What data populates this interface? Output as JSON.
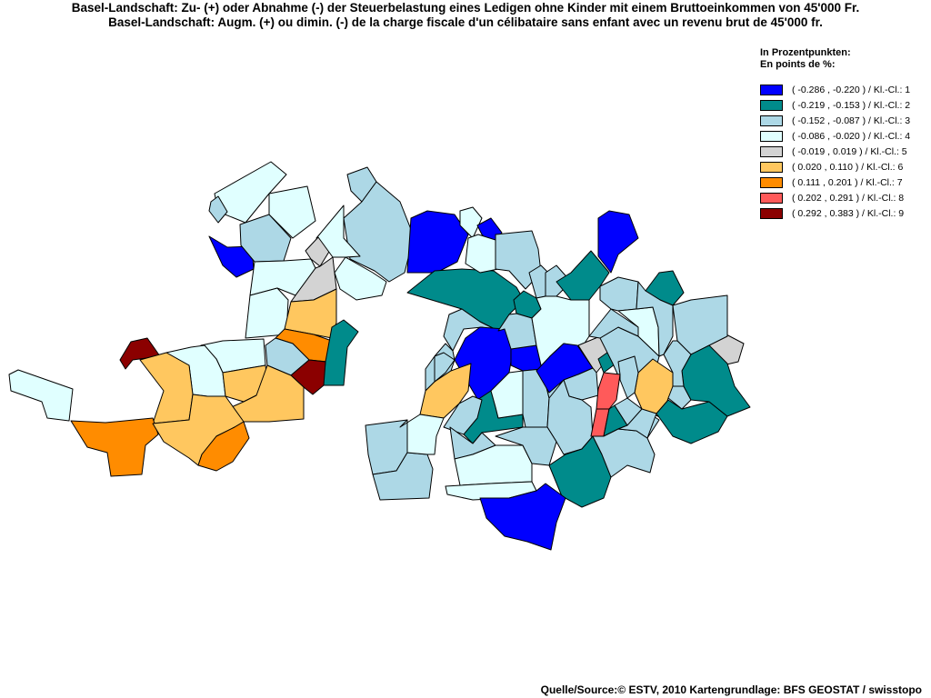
{
  "title_de": "Basel-Landschaft: Zu- (+) oder Abnahme (-) der Steuerbelastung eines Ledigen ohne Kinder mit einem Bruttoeinkommen von 45'000 Fr.",
  "title_fr": "Basel-Landschaft: Augm. (+) ou dimin. (-) de la charge fiscale d'un célibataire sans enfant avec un revenu brut de 45'000 fr.",
  "legend": {
    "unit_de": "In Prozentpunkten:",
    "unit_fr": "En points de %:",
    "classes": [
      {
        "label": "( -0.286 , -0.220 ) / Kl.-Cl.: 1",
        "color": "#0000ff"
      },
      {
        "label": "( -0.219 , -0.153 ) / Kl.-Cl.: 2",
        "color": "#008b8b"
      },
      {
        "label": "( -0.152 , -0.087 ) / Kl.-Cl.: 3",
        "color": "#add8e6"
      },
      {
        "label": "( -0.086 , -0.020 ) / Kl.-Cl.: 4",
        "color": "#e0ffff"
      },
      {
        "label": "( -0.019 , 0.019 ) / Kl.-Cl.: 5",
        "color": "#d3d3d3"
      },
      {
        "label": "( 0.020 , 0.110 ) / Kl.-Cl.: 6",
        "color": "#ffc75f"
      },
      {
        "label": "( 0.111 , 0.201 ) / Kl.-Cl.: 7",
        "color": "#ff8c00"
      },
      {
        "label": "( 0.202 , 0.291 ) / Kl.-Cl.: 8",
        "color": "#ff5a5a"
      },
      {
        "label": "( 0.292 , 0.383 ) / Kl.-Cl.: 9",
        "color": "#8b0000"
      }
    ]
  },
  "map": {
    "region_count": 86,
    "regions": [
      {
        "id": "r1",
        "class": 4
      },
      {
        "id": "r2",
        "class": 3
      },
      {
        "id": "r3",
        "class": 1
      },
      {
        "id": "r4",
        "class": 3
      },
      {
        "id": "r5",
        "class": 4
      },
      {
        "id": "r6",
        "class": 4
      },
      {
        "id": "r7",
        "class": 4
      },
      {
        "id": "r8",
        "class": 5
      },
      {
        "id": "r9",
        "class": 5
      },
      {
        "id": "r10",
        "class": 4
      },
      {
        "id": "r11",
        "class": 6
      },
      {
        "id": "r12",
        "class": 7
      },
      {
        "id": "r13",
        "class": 2
      },
      {
        "id": "r14",
        "class": 9
      },
      {
        "id": "r15",
        "class": 3
      },
      {
        "id": "r16",
        "class": 4
      },
      {
        "id": "r17",
        "class": 4
      },
      {
        "id": "r18",
        "class": 9
      },
      {
        "id": "r19",
        "class": 4
      },
      {
        "id": "r20",
        "class": 6
      },
      {
        "id": "r21",
        "class": 6
      },
      {
        "id": "r22",
        "class": 6
      },
      {
        "id": "r23",
        "class": 7
      },
      {
        "id": "r24",
        "class": 6
      },
      {
        "id": "r25",
        "class": 7
      },
      {
        "id": "r26",
        "class": 3
      },
      {
        "id": "r27",
        "class": 3
      },
      {
        "id": "r28",
        "class": 4
      },
      {
        "id": "r29",
        "class": 1
      },
      {
        "id": "r30",
        "class": 4
      },
      {
        "id": "r31",
        "class": 1
      },
      {
        "id": "r32",
        "class": 2
      },
      {
        "id": "r33",
        "class": 3
      },
      {
        "id": "r34",
        "class": 4
      },
      {
        "id": "r35",
        "class": 3
      },
      {
        "id": "r36",
        "class": 1
      },
      {
        "id": "r37",
        "class": 1
      },
      {
        "id": "r38",
        "class": 2
      },
      {
        "id": "r39",
        "class": 3
      },
      {
        "id": "r40",
        "class": 2
      },
      {
        "id": "r41",
        "class": 3
      },
      {
        "id": "r42",
        "class": 3
      },
      {
        "id": "r43",
        "class": 3
      },
      {
        "id": "r44",
        "class": 3
      },
      {
        "id": "r45",
        "class": 4
      },
      {
        "id": "r46",
        "class": 4
      },
      {
        "id": "r47",
        "class": 3
      },
      {
        "id": "r48",
        "class": 3
      },
      {
        "id": "r49",
        "class": 1
      },
      {
        "id": "r50",
        "class": 1
      },
      {
        "id": "r51",
        "class": 5
      },
      {
        "id": "r52",
        "class": 3
      },
      {
        "id": "r53",
        "class": 3
      },
      {
        "id": "r54",
        "class": 3
      },
      {
        "id": "r55",
        "class": 6
      },
      {
        "id": "r56",
        "class": 3
      },
      {
        "id": "r57",
        "class": 5
      },
      {
        "id": "r58",
        "class": 2
      },
      {
        "id": "r59",
        "class": 3
      },
      {
        "id": "r60",
        "class": 8
      },
      {
        "id": "r61",
        "class": 8
      },
      {
        "id": "r62",
        "class": 2
      },
      {
        "id": "r63",
        "class": 3
      },
      {
        "id": "r64",
        "class": 2
      },
      {
        "id": "r65",
        "class": 3
      },
      {
        "id": "r66",
        "class": 3
      },
      {
        "id": "r67",
        "class": 3
      },
      {
        "id": "r68",
        "class": 2
      },
      {
        "id": "r69",
        "class": 2
      },
      {
        "id": "r70",
        "class": 4
      },
      {
        "id": "r71",
        "class": 3
      },
      {
        "id": "r72",
        "class": 3
      },
      {
        "id": "r73",
        "class": 6
      },
      {
        "id": "r74",
        "class": 4
      },
      {
        "id": "r75",
        "class": 3
      },
      {
        "id": "r76",
        "class": 2
      },
      {
        "id": "r77",
        "class": 3
      },
      {
        "id": "r78",
        "class": 4
      },
      {
        "id": "r79",
        "class": 4
      },
      {
        "id": "r80",
        "class": 3
      },
      {
        "id": "r81",
        "class": 2
      },
      {
        "id": "r82",
        "class": 1
      },
      {
        "id": "r83",
        "class": 3
      },
      {
        "id": "r84",
        "class": 3
      },
      {
        "id": "r85",
        "class": 3
      },
      {
        "id": "r86",
        "class": 3
      }
    ]
  },
  "source": "Quelle/Source:© ESTV, 2010 Kartengrundlage: BFS GEOSTAT / swisstopo"
}
